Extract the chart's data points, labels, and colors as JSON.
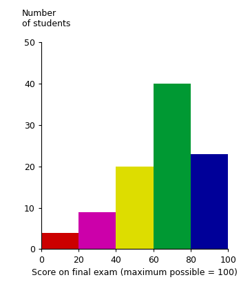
{
  "bin_edges": [
    0,
    20,
    40,
    60,
    80,
    100
  ],
  "values": [
    4,
    9,
    20,
    40,
    23
  ],
  "bar_colors": [
    "#cc0000",
    "#cc00aa",
    "#dddd00",
    "#009933",
    "#000099"
  ],
  "xlabel": "Score on final exam (maximum possible = 100)",
  "ylabel_line1": "Number",
  "ylabel_line2": "of students",
  "xlim": [
    0,
    100
  ],
  "ylim": [
    0,
    50
  ],
  "yticks": [
    0,
    10,
    20,
    30,
    40,
    50
  ],
  "xticks": [
    0,
    20,
    40,
    60,
    80,
    100
  ],
  "background_color": "#ffffff",
  "label_fontsize": 9,
  "tick_fontsize": 9
}
